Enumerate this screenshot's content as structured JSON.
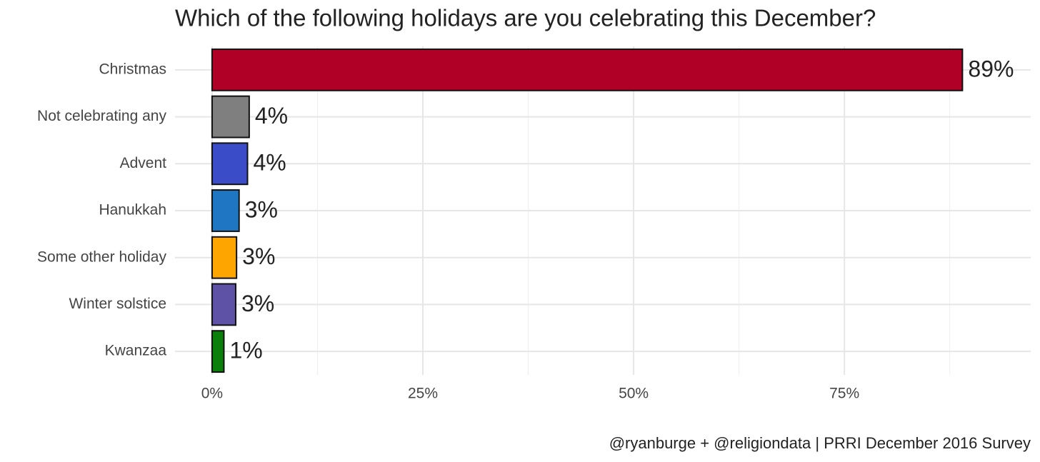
{
  "chart_data": {
    "type": "bar",
    "orientation": "horizontal",
    "title": "Which of the following holidays are you celebrating this December?",
    "caption": "@ryanburge + @religiondata | PRRI December 2016 Survey",
    "categories": [
      "Christmas",
      "Not celebrating any",
      "Advent",
      "Hanukkah",
      "Some other holiday",
      "Winter solstice",
      "Kwanzaa"
    ],
    "values": [
      89.0,
      4.4,
      4.2,
      3.2,
      2.9,
      2.8,
      1.4
    ],
    "value_labels": [
      "89%",
      "4%",
      "4%",
      "3%",
      "3%",
      "3%",
      "1%"
    ],
    "colors": [
      "#b00026",
      "#7f7f7f",
      "#3b4cc8",
      "#1f77c4",
      "#ffa500",
      "#5e52a6",
      "#0a800a"
    ],
    "xlim": [
      -4.4,
      97.1
    ],
    "xticks": [
      {
        "value": 0,
        "label": "0%"
      },
      {
        "value": 25,
        "label": "25%"
      },
      {
        "value": 50,
        "label": "50%"
      },
      {
        "value": 75,
        "label": "75%"
      }
    ],
    "minor_xticks": [
      12.5,
      37.5,
      62.5,
      87.5
    ],
    "grid": true
  }
}
